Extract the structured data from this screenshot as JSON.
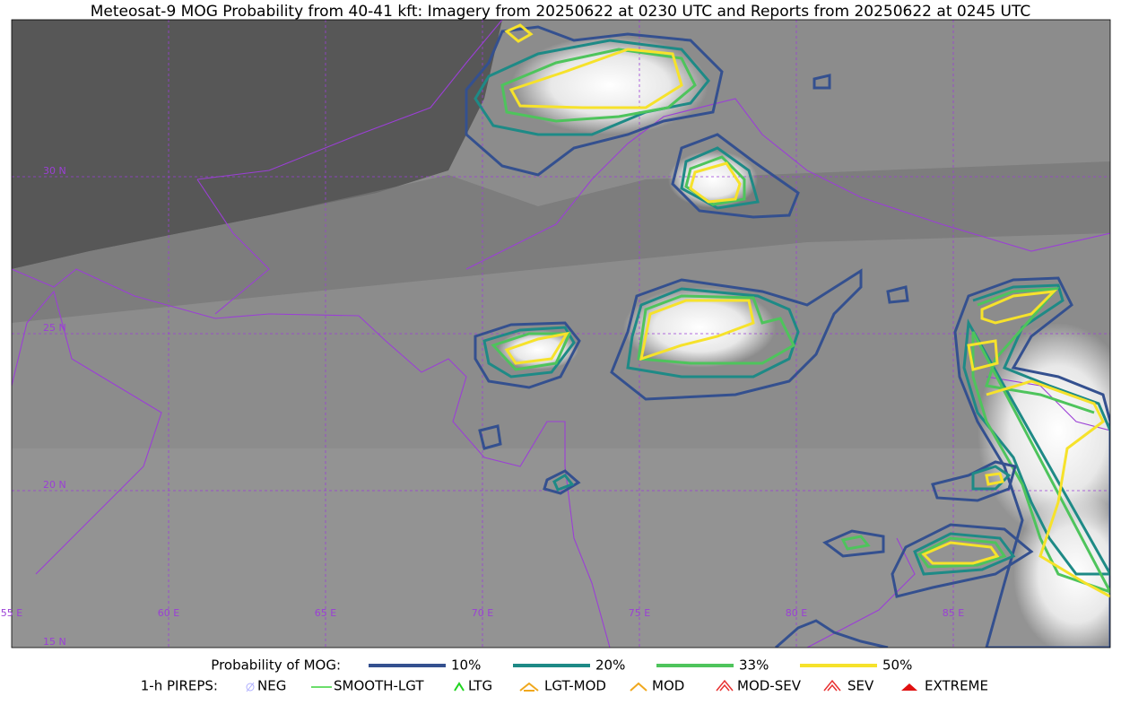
{
  "title": "Meteosat-9 MOG Probability from 40-41 kft: Imagery from 20250622 at 0230 UTC and Reports from 20250622 at 0245 UTC",
  "map": {
    "lat_labels": [
      "30 N",
      "25 N",
      "20 N",
      "15 N"
    ],
    "lon_labels": [
      "55 E",
      "60 E",
      "65 E",
      "70 E",
      "75 E",
      "80 E",
      "85 E"
    ]
  },
  "legend": {
    "probability_title": "Probability of MOG:",
    "probability_levels": [
      {
        "name": "10%",
        "color": "#34508f"
      },
      {
        "name": "20%",
        "color": "#1e8a86"
      },
      {
        "name": "33%",
        "color": "#4ec45c"
      },
      {
        "name": "50%",
        "color": "#f6e22b"
      }
    ],
    "pireps_title": "1-h PIREPS:",
    "pireps": [
      "NEG",
      "SMOOTH-LGT",
      "LTG",
      "LGT-MOD",
      "MOD",
      "MOD-SEV",
      "SEV",
      "EXTREME"
    ]
  }
}
